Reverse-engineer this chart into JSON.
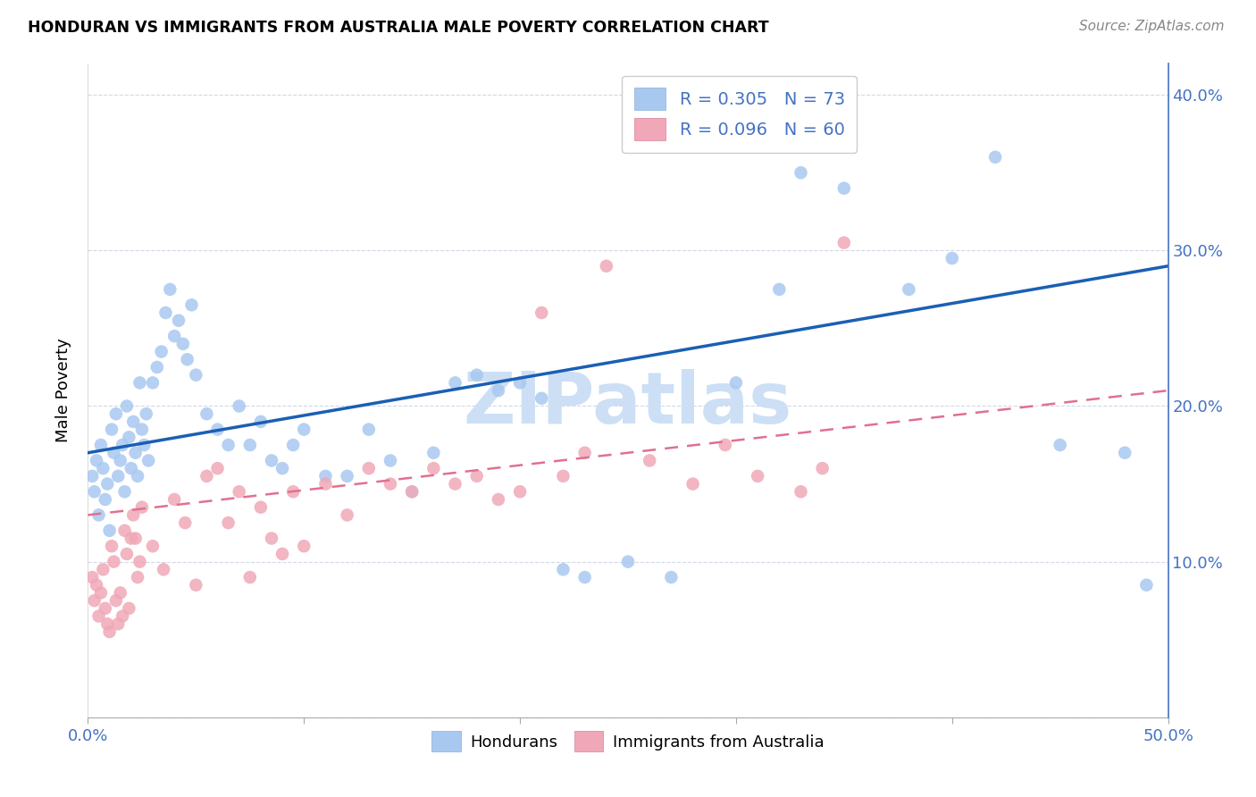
{
  "title": "HONDURAN VS IMMIGRANTS FROM AUSTRALIA MALE POVERTY CORRELATION CHART",
  "source": "Source: ZipAtlas.com",
  "ylabel": "Male Poverty",
  "xlim": [
    0.0,
    0.5
  ],
  "ylim": [
    0.0,
    0.42
  ],
  "color_blue": "#a8c8f0",
  "color_pink": "#f0a8b8",
  "color_line_blue": "#1a5fb4",
  "color_line_pink": "#e07090",
  "watermark": "ZIPatlas",
  "watermark_color": "#ccdff5",
  "blue_line_x0": 0.0,
  "blue_line_y0": 0.17,
  "blue_line_x1": 0.5,
  "blue_line_y1": 0.29,
  "pink_line_x0": 0.0,
  "pink_line_y0": 0.13,
  "pink_line_x1": 0.5,
  "pink_line_y1": 0.21,
  "blue_points_x": [
    0.002,
    0.003,
    0.004,
    0.005,
    0.006,
    0.007,
    0.008,
    0.009,
    0.01,
    0.011,
    0.012,
    0.013,
    0.014,
    0.015,
    0.016,
    0.017,
    0.018,
    0.019,
    0.02,
    0.021,
    0.022,
    0.023,
    0.024,
    0.025,
    0.026,
    0.027,
    0.028,
    0.03,
    0.032,
    0.034,
    0.036,
    0.038,
    0.04,
    0.042,
    0.044,
    0.046,
    0.048,
    0.05,
    0.055,
    0.06,
    0.065,
    0.07,
    0.075,
    0.08,
    0.085,
    0.09,
    0.095,
    0.1,
    0.11,
    0.12,
    0.13,
    0.14,
    0.15,
    0.16,
    0.17,
    0.18,
    0.19,
    0.2,
    0.21,
    0.22,
    0.23,
    0.25,
    0.27,
    0.3,
    0.32,
    0.33,
    0.35,
    0.38,
    0.4,
    0.42,
    0.45,
    0.48,
    0.49
  ],
  "blue_points_y": [
    0.155,
    0.145,
    0.165,
    0.13,
    0.175,
    0.16,
    0.14,
    0.15,
    0.12,
    0.185,
    0.17,
    0.195,
    0.155,
    0.165,
    0.175,
    0.145,
    0.2,
    0.18,
    0.16,
    0.19,
    0.17,
    0.155,
    0.215,
    0.185,
    0.175,
    0.195,
    0.165,
    0.215,
    0.225,
    0.235,
    0.26,
    0.275,
    0.245,
    0.255,
    0.24,
    0.23,
    0.265,
    0.22,
    0.195,
    0.185,
    0.175,
    0.2,
    0.175,
    0.19,
    0.165,
    0.16,
    0.175,
    0.185,
    0.155,
    0.155,
    0.185,
    0.165,
    0.145,
    0.17,
    0.215,
    0.22,
    0.21,
    0.215,
    0.205,
    0.095,
    0.09,
    0.1,
    0.09,
    0.215,
    0.275,
    0.35,
    0.34,
    0.275,
    0.295,
    0.36,
    0.175,
    0.17,
    0.085
  ],
  "pink_points_x": [
    0.002,
    0.003,
    0.004,
    0.005,
    0.006,
    0.007,
    0.008,
    0.009,
    0.01,
    0.011,
    0.012,
    0.013,
    0.014,
    0.015,
    0.016,
    0.017,
    0.018,
    0.019,
    0.02,
    0.021,
    0.022,
    0.023,
    0.024,
    0.025,
    0.03,
    0.035,
    0.04,
    0.045,
    0.05,
    0.055,
    0.06,
    0.065,
    0.07,
    0.075,
    0.08,
    0.085,
    0.09,
    0.095,
    0.1,
    0.11,
    0.12,
    0.13,
    0.14,
    0.15,
    0.16,
    0.17,
    0.18,
    0.19,
    0.2,
    0.21,
    0.22,
    0.23,
    0.24,
    0.26,
    0.28,
    0.295,
    0.31,
    0.33,
    0.34,
    0.35
  ],
  "pink_points_y": [
    0.09,
    0.075,
    0.085,
    0.065,
    0.08,
    0.095,
    0.07,
    0.06,
    0.055,
    0.11,
    0.1,
    0.075,
    0.06,
    0.08,
    0.065,
    0.12,
    0.105,
    0.07,
    0.115,
    0.13,
    0.115,
    0.09,
    0.1,
    0.135,
    0.11,
    0.095,
    0.14,
    0.125,
    0.085,
    0.155,
    0.16,
    0.125,
    0.145,
    0.09,
    0.135,
    0.115,
    0.105,
    0.145,
    0.11,
    0.15,
    0.13,
    0.16,
    0.15,
    0.145,
    0.16,
    0.15,
    0.155,
    0.14,
    0.145,
    0.26,
    0.155,
    0.17,
    0.29,
    0.165,
    0.15,
    0.175,
    0.155,
    0.145,
    0.16,
    0.305
  ]
}
